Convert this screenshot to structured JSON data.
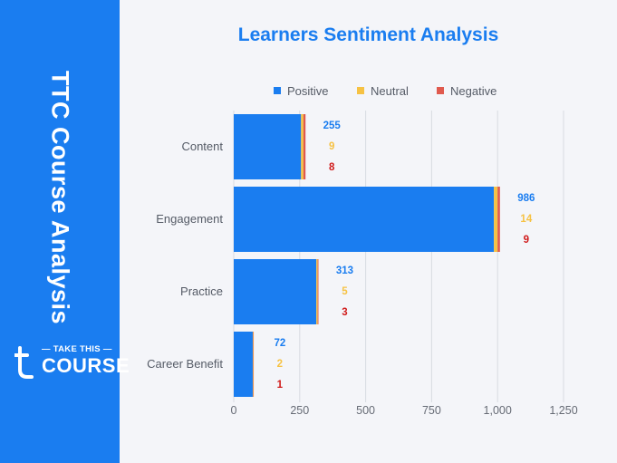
{
  "sidebar": {
    "vertical_title": "TTC Course Analysis",
    "logo_small": "TAKE THIS",
    "logo_big": "COURSE",
    "logo_letter": "t"
  },
  "colors": {
    "sidebar": "#1a7df0",
    "positive": "#1a7df0",
    "neutral": "#f6c244",
    "negative": "#e05a4e",
    "negative_label": "#d01a1a",
    "grid": "#d8dbe1"
  },
  "chart_data": {
    "type": "bar",
    "orientation": "horizontal",
    "stacked": true,
    "title": "Learners Sentiment Analysis",
    "categories": [
      "Content",
      "Engagement",
      "Practice",
      "Career Benefit"
    ],
    "series": [
      {
        "name": "Positive",
        "values": [
          255,
          986,
          313,
          72
        ]
      },
      {
        "name": "Neutral",
        "values": [
          9,
          14,
          5,
          2
        ]
      },
      {
        "name": "Negative",
        "values": [
          8,
          9,
          3,
          1
        ]
      }
    ],
    "xlim": [
      0,
      1250
    ],
    "xticks": [
      0,
      250,
      500,
      750,
      1000,
      1250
    ],
    "xtick_labels": [
      "0",
      "250",
      "500",
      "750",
      "1,000",
      "1,250"
    ],
    "grid": true,
    "legend_position": "top"
  }
}
